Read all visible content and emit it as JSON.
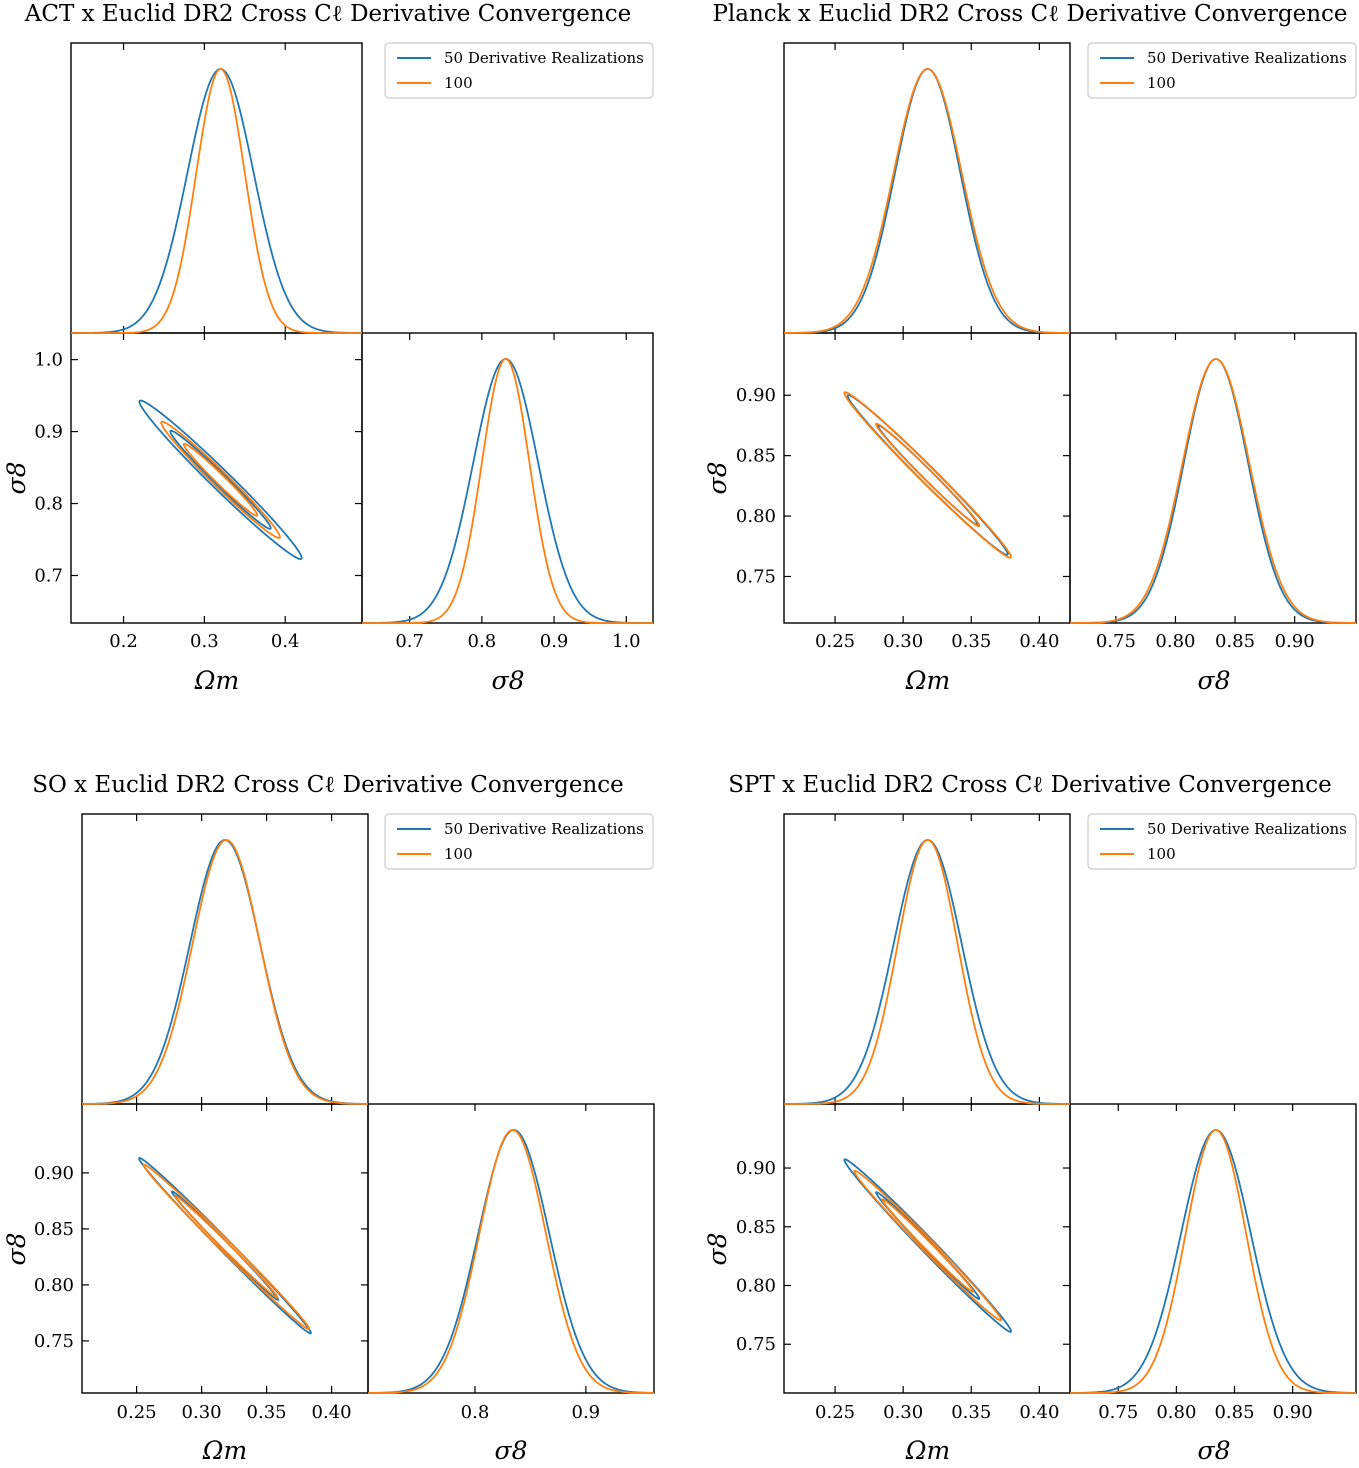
{
  "colors": {
    "series_a": "#1f77b4",
    "series_b": "#ff7f0e"
  },
  "chart_data": [
    {
      "type": "triangle",
      "title": "ACT x Euclid DR2 Cross Cℓ Derivative Convergence",
      "xlabel": "Ωm",
      "ylabel": "σ8",
      "diag_xlabel": "σ8",
      "legend_position": "upper-right",
      "om_range": [
        0.135,
        0.495
      ],
      "s8_range": [
        0.634,
        1.037
      ],
      "om_ticks": [
        0.2,
        0.3,
        0.4
      ],
      "om_tick_labels": [
        "0.2",
        "0.3",
        "0.4"
      ],
      "s8_ticks": [
        0.7,
        0.8,
        0.9,
        1.0
      ],
      "s8_tick_labels": [
        "0.7",
        "0.8",
        "0.9",
        "1.0"
      ],
      "series": [
        {
          "name": "50 Derivative Realizations",
          "color": "#1f77b4",
          "mean_om": 0.32,
          "mean_s8": 0.833,
          "sigma_om": 0.041,
          "sigma_s8": 0.045,
          "corr": -0.985
        },
        {
          "name": "100",
          "color": "#ff7f0e",
          "mean_om": 0.32,
          "mean_s8": 0.833,
          "sigma_om": 0.03,
          "sigma_s8": 0.033,
          "corr": -0.983
        }
      ]
    },
    {
      "type": "triangle",
      "title": "Planck x Euclid DR2 Cross Cℓ Derivative Convergence",
      "xlabel": "Ωm",
      "ylabel": "σ8",
      "diag_xlabel": "σ8",
      "legend_position": "upper-right",
      "om_range": [
        0.2125,
        0.4225
      ],
      "s8_range": [
        0.7115,
        0.9515
      ],
      "om_ticks": [
        0.25,
        0.3,
        0.35,
        0.4
      ],
      "om_tick_labels": [
        "0.25",
        "0.30",
        "0.35",
        "0.40"
      ],
      "s8_ticks": [
        0.75,
        0.8,
        0.85,
        0.9
      ],
      "s8_tick_labels": [
        "0.75",
        "0.80",
        "0.85",
        "0.90"
      ],
      "series": [
        {
          "name": "50 Derivative Realizations",
          "color": "#1f77b4",
          "mean_om": 0.318,
          "mean_s8": 0.834,
          "sigma_om": 0.024,
          "sigma_s8": 0.027,
          "corr": -0.99
        },
        {
          "name": "100",
          "color": "#ff7f0e",
          "mean_om": 0.318,
          "mean_s8": 0.834,
          "sigma_om": 0.025,
          "sigma_s8": 0.028,
          "corr": -0.99
        }
      ]
    },
    {
      "type": "triangle",
      "title": "SO x Euclid DR2 Cross Cℓ Derivative Convergence",
      "xlabel": "Ωm",
      "ylabel": "σ8",
      "diag_xlabel": "σ8",
      "legend_position": "upper-right",
      "om_range": [
        0.208,
        0.428
      ],
      "s8_range": [
        0.7035,
        0.9615
      ],
      "om_ticks": [
        0.25,
        0.3,
        0.35,
        0.4
      ],
      "om_tick_labels": [
        "0.25",
        "0.30",
        "0.35",
        "0.40"
      ],
      "s8_ticks": [
        0.75,
        0.8,
        0.85,
        0.9
      ],
      "s8_tick_labels": [
        "0.75",
        "0.80",
        "0.85",
        "0.90"
      ],
      "diag_ticks": [
        0.8,
        0.9
      ],
      "diag_tick_labels": [
        "0.8",
        "0.9"
      ],
      "series": [
        {
          "name": "50 Derivative Realizations",
          "color": "#1f77b4",
          "mean_om": 0.318,
          "mean_s8": 0.835,
          "sigma_om": 0.027,
          "sigma_s8": 0.032,
          "corr": -0.995
        },
        {
          "name": "100",
          "color": "#ff7f0e",
          "mean_om": 0.319,
          "mean_s8": 0.834,
          "sigma_om": 0.026,
          "sigma_s8": 0.03,
          "corr": -0.995
        }
      ]
    },
    {
      "type": "triangle",
      "title": "SPT x Euclid DR2 Cross Cℓ Derivative Convergence",
      "xlabel": "Ωm",
      "ylabel": "σ8",
      "diag_xlabel": "σ8",
      "legend_position": "upper-right",
      "om_range": [
        0.2125,
        0.4225
      ],
      "s8_range": [
        0.7085,
        0.9545
      ],
      "om_ticks": [
        0.25,
        0.3,
        0.35,
        0.4
      ],
      "om_tick_labels": [
        "0.25",
        "0.30",
        "0.35",
        "0.40"
      ],
      "s8_ticks": [
        0.75,
        0.8,
        0.85,
        0.9
      ],
      "s8_tick_labels": [
        "0.75",
        "0.80",
        "0.85",
        "0.90"
      ],
      "series": [
        {
          "name": "50 Derivative Realizations",
          "color": "#1f77b4",
          "mean_om": 0.318,
          "mean_s8": 0.834,
          "sigma_om": 0.025,
          "sigma_s8": 0.03,
          "corr": -0.993
        },
        {
          "name": "100",
          "color": "#ff7f0e",
          "mean_om": 0.318,
          "mean_s8": 0.834,
          "sigma_om": 0.022,
          "sigma_s8": 0.026,
          "corr": -0.993
        }
      ]
    }
  ]
}
